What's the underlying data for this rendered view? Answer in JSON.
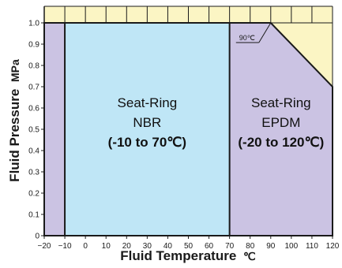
{
  "chart_data": {
    "type": "area",
    "x_label": "Fluid Temperature",
    "x_unit": "℃",
    "y_label": "Fluid Pressure",
    "y_unit": "MPa",
    "xlim": [
      -20,
      120
    ],
    "ylim": [
      0,
      1.0
    ],
    "x_ticks": [
      "−20",
      "−10",
      "0",
      "10",
      "20",
      "30",
      "40",
      "50",
      "60",
      "70",
      "80",
      "90",
      "100",
      "110",
      "120"
    ],
    "y_ticks": [
      "0",
      "0.1",
      "0.2",
      "0.3",
      "0.4",
      "0.5",
      "0.6",
      "0.7",
      "0.8",
      "0.9",
      "1.0"
    ],
    "series": [
      {
        "name": "NBR",
        "label_lines": [
          "Seat-Ring",
          "NBR",
          "(-10 to 70℃)"
        ],
        "color": "#bfe6f6",
        "points": [
          [
            -10,
            0
          ],
          [
            -10,
            1.0
          ],
          [
            70,
            1.0
          ],
          [
            70,
            0
          ]
        ]
      },
      {
        "name": "EPDM",
        "label_lines": [
          "Seat-Ring",
          "EPDM",
          "(-20 to 120℃)"
        ],
        "color": "#cbc3e3",
        "points": [
          [
            -20,
            0
          ],
          [
            -20,
            1.0
          ],
          [
            90,
            1.0
          ],
          [
            120,
            0.7
          ],
          [
            120,
            0
          ]
        ]
      }
    ],
    "annotations": [
      {
        "text": "90℃",
        "x": 90,
        "y": 1.0
      }
    ],
    "background_color": "#fbf5c4",
    "grid": true
  }
}
